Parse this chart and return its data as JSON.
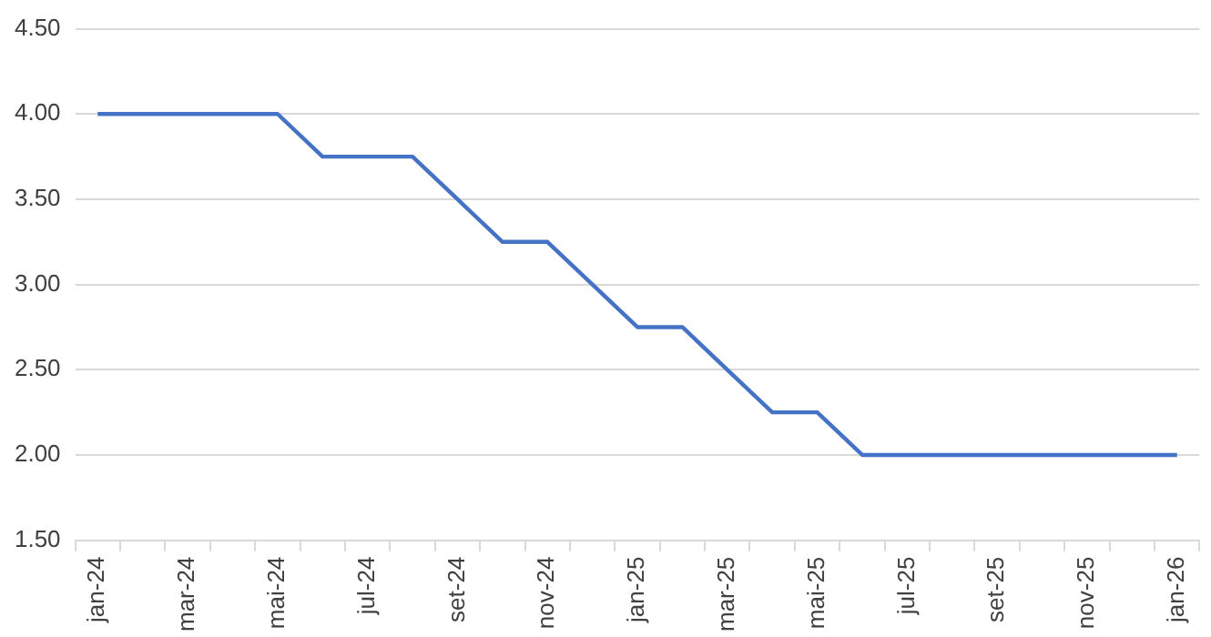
{
  "chart_data": {
    "type": "line",
    "categories": [
      "jan-24",
      null,
      "mar-24",
      null,
      "mai-24",
      null,
      "jul-24",
      null,
      "set-24",
      null,
      "nov-24",
      null,
      "jan-25",
      null,
      "mar-25",
      null,
      "mai-25",
      null,
      "jul-25",
      null,
      "set-25",
      null,
      "nov-25",
      null,
      "jan-26"
    ],
    "series": [
      {
        "color": "#4472c4",
        "values": [
          4.0,
          4.0,
          4.0,
          4.0,
          4.0,
          3.75,
          3.75,
          3.75,
          3.5,
          3.25,
          3.25,
          3.0,
          2.75,
          2.75,
          2.5,
          2.25,
          2.25,
          2.0,
          2.0,
          2.0,
          2.0,
          2.0,
          2.0,
          2.0,
          2.0
        ]
      }
    ],
    "ylim": [
      1.5,
      4.5
    ],
    "yticks": [
      {
        "value": 1.5,
        "label": "1.50"
      },
      {
        "value": 2.0,
        "label": "2.00"
      },
      {
        "value": 2.5,
        "label": "2.50"
      },
      {
        "value": 3.0,
        "label": "3.00"
      },
      {
        "value": 3.5,
        "label": "3.50"
      },
      {
        "value": 4.0,
        "label": "4.00"
      },
      {
        "value": 4.5,
        "label": "4.50"
      }
    ],
    "grid": "y",
    "marker": "none",
    "line_style": "solid",
    "legend": false
  }
}
